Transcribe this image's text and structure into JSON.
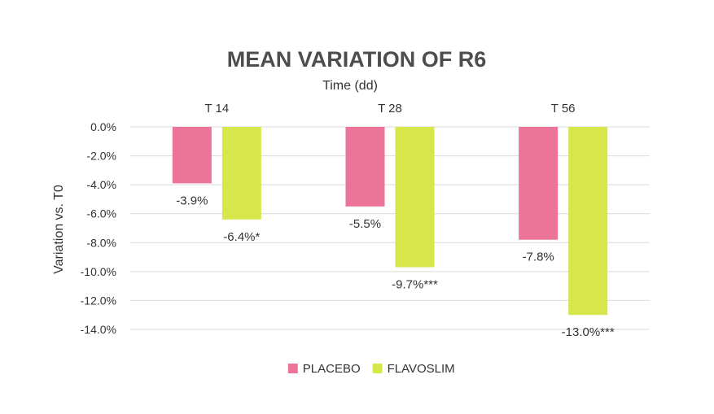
{
  "chart_data": {
    "type": "bar",
    "title": "MEAN VARIATION OF R6",
    "xlabel": "Time (dd)",
    "ylabel": "Variation vs. T0",
    "categories": [
      "T 14",
      "T 28",
      "T 56"
    ],
    "ylim": [
      -14.0,
      0.0
    ],
    "yticks": [
      0.0,
      -2.0,
      -4.0,
      -6.0,
      -8.0,
      -10.0,
      -12.0,
      -14.0
    ],
    "ytick_labels": [
      "0.0%",
      "-2.0%",
      "-4.0%",
      "-6.0%",
      "-8.0%",
      "-10.0%",
      "-12.0%",
      "-14.0%"
    ],
    "x_axis_position": "top",
    "grid": true,
    "legend_position": "bottom-center",
    "series": [
      {
        "name": "PLACEBO",
        "color": "#ec7499",
        "values": [
          -3.9,
          -5.5,
          -7.8
        ],
        "labels": [
          "-3.9%",
          "-5.5%",
          "-7.8%"
        ]
      },
      {
        "name": "FLAVOSLIM",
        "color": "#d7e64a",
        "values": [
          -6.4,
          -9.7,
          -13.0
        ],
        "labels": [
          "-6.4%*",
          "-9.7%***",
          "-13.0%***"
        ]
      }
    ]
  }
}
